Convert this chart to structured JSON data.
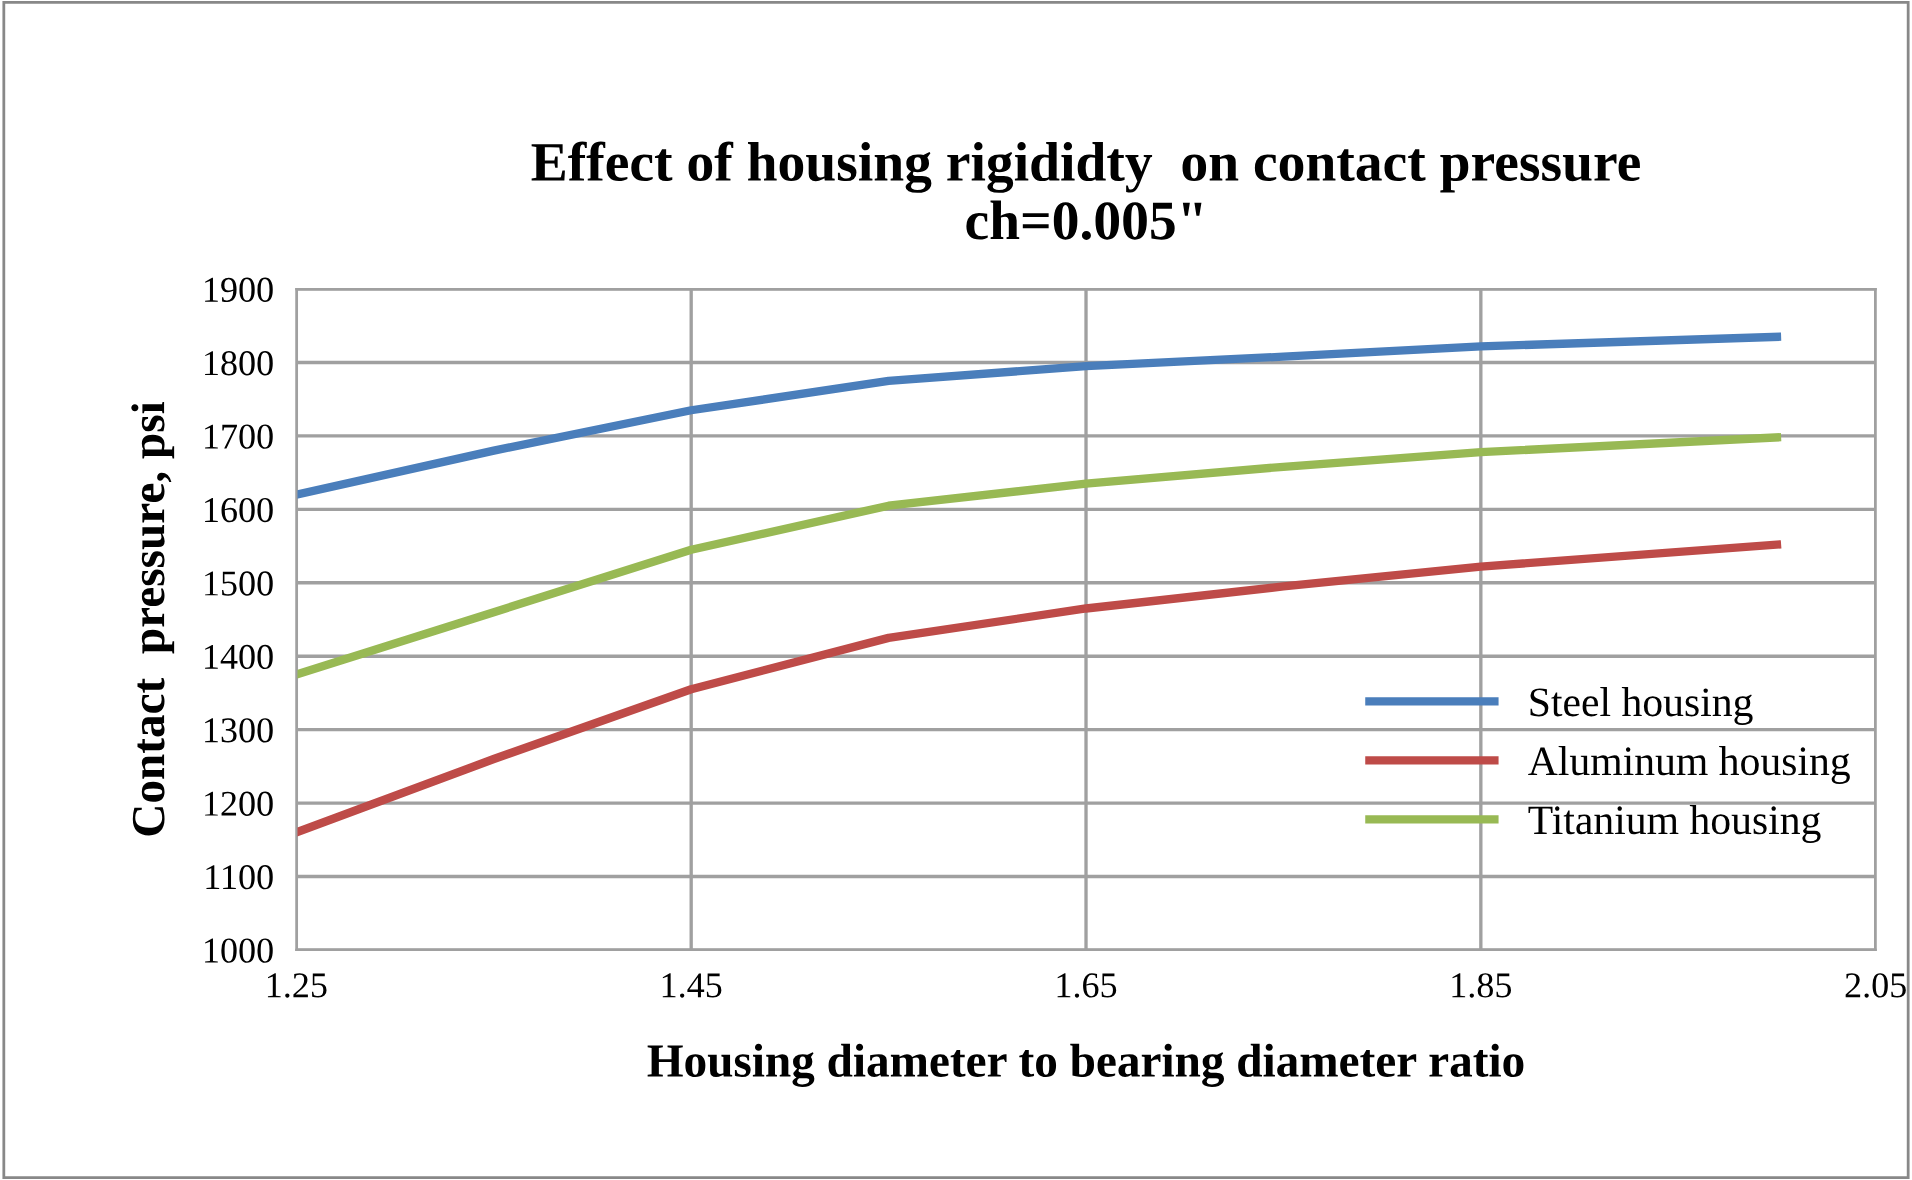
{
  "chart_data": {
    "type": "line",
    "title": "Effect of housing rigididty  on contact pressure\nch=0.005\"",
    "xlabel": "Housing diameter to bearing diameter ratio",
    "ylabel": "Contact  pressure, psi",
    "x": [
      1.25,
      1.35,
      1.45,
      1.55,
      1.65,
      1.75,
      1.85,
      2.0
    ],
    "series": [
      {
        "name": "Steel housing",
        "color": "#4a7ebb",
        "values": [
          1620,
          1680,
          1735,
          1775,
          1795,
          1808,
          1822,
          1835
        ]
      },
      {
        "name": "Aluminum housing",
        "color": "#be4b48",
        "values": [
          1160,
          1260,
          1355,
          1425,
          1465,
          1495,
          1522,
          1552
        ]
      },
      {
        "name": "Titanium housing",
        "color": "#98b954",
        "values": [
          1375,
          1460,
          1545,
          1605,
          1635,
          1658,
          1678,
          1698
        ]
      }
    ],
    "xlim": [
      1.25,
      2.05
    ],
    "xticks": [
      {
        "value": 1.25,
        "label": "1.25"
      },
      {
        "value": 1.45,
        "label": "1.45"
      },
      {
        "value": 1.65,
        "label": "1.65"
      },
      {
        "value": 1.85,
        "label": "1.85"
      },
      {
        "value": 2.05,
        "label": "2.05"
      }
    ],
    "ylim": [
      1000,
      1900
    ],
    "yticks": [
      1000,
      1100,
      1200,
      1300,
      1400,
      1500,
      1600,
      1700,
      1800,
      1900
    ],
    "grid": true,
    "legend": "right",
    "marker": "none",
    "line_style": "solid"
  }
}
